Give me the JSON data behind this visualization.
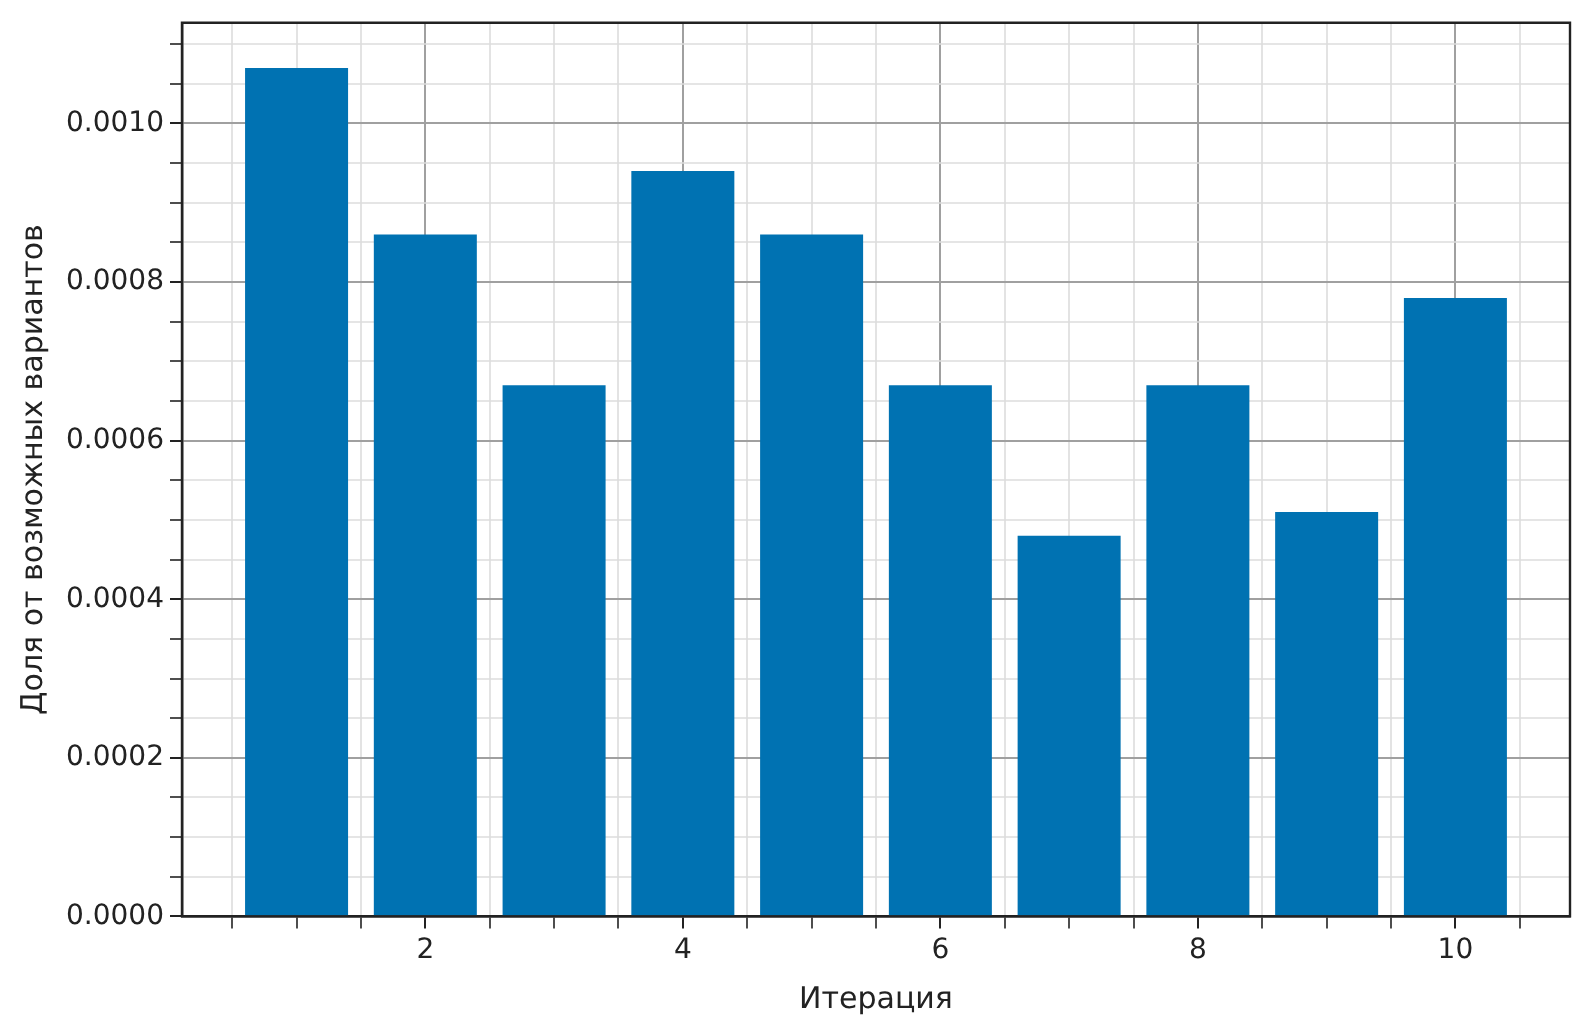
{
  "chart_data": {
    "type": "bar",
    "xlabel": "Итерация",
    "ylabel": "Доля от возможных вариантов",
    "x": [
      1,
      2,
      3,
      4,
      5,
      6,
      7,
      8,
      9,
      10
    ],
    "values": [
      0.00107,
      0.00086,
      0.00067,
      0.00094,
      0.00086,
      0.00067,
      0.00048,
      0.00067,
      0.00051,
      0.00078
    ],
    "color": "#0072b2",
    "xlim": [
      0.11,
      10.89
    ],
    "xticks": [
      {
        "value": 0.5,
        "label": null
      },
      {
        "value": 1,
        "label": null
      },
      {
        "value": 1.5,
        "label": null
      },
      2,
      {
        "value": 2.5,
        "label": null
      },
      {
        "value": 3,
        "label": null
      },
      {
        "value": 3.5,
        "label": null
      },
      4,
      {
        "value": 4.5,
        "label": null
      },
      {
        "value": 5,
        "label": null
      },
      {
        "value": 5.5,
        "label": null
      },
      6,
      {
        "value": 6.5,
        "label": null
      },
      {
        "value": 7,
        "label": null
      },
      {
        "value": 7.5,
        "label": null
      },
      8,
      {
        "value": 8.5,
        "label": null
      },
      {
        "value": 9,
        "label": null
      },
      {
        "value": 9.5,
        "label": null
      },
      10,
      {
        "value": 10.5,
        "label": null
      }
    ],
    "ylim": [
      0,
      0.001127
    ],
    "yticks": [
      {
        "value": 0,
        "label": "0.0000"
      },
      {
        "value": 5e-05,
        "label": null
      },
      {
        "value": 0.0001,
        "label": null
      },
      {
        "value": 0.00015,
        "label": null
      },
      {
        "value": 0.0002,
        "label": "0.0002"
      },
      {
        "value": 0.00025,
        "label": null
      },
      {
        "value": 0.0003,
        "label": null
      },
      {
        "value": 0.00035,
        "label": null
      },
      {
        "value": 0.0004,
        "label": "0.0004"
      },
      {
        "value": 0.00045,
        "label": null
      },
      {
        "value": 0.0005,
        "label": null
      },
      {
        "value": 0.00055,
        "label": null
      },
      {
        "value": 0.0006,
        "label": "0.0006"
      },
      {
        "value": 0.00065,
        "label": null
      },
      {
        "value": 0.0007,
        "label": null
      },
      {
        "value": 0.00075,
        "label": null
      },
      {
        "value": 0.0008,
        "label": "0.0008"
      },
      {
        "value": 0.00085,
        "label": null
      },
      {
        "value": 0.0009,
        "label": null
      },
      {
        "value": 0.00095,
        "label": null
      },
      {
        "value": 0.001,
        "label": "0.0010"
      },
      {
        "value": 0.00105,
        "label": null
      },
      {
        "value": 0.0011,
        "label": null
      }
    ],
    "grid": true,
    "legend": false
  }
}
